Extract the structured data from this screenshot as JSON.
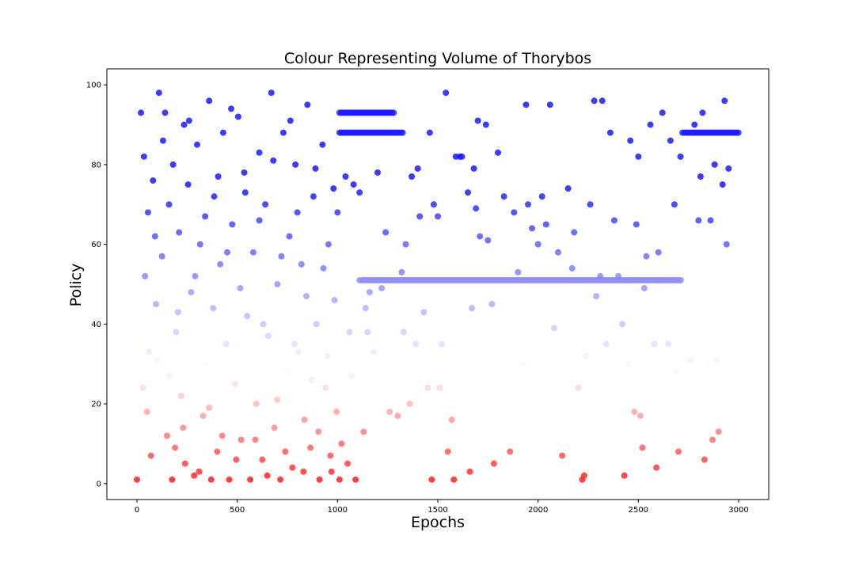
{
  "chart_data": {
    "type": "scatter",
    "title": "Colour Representing Volume of Thorybos",
    "xlabel": "Epochs",
    "ylabel": "Policy",
    "xlim": [
      -150,
      3150
    ],
    "ylim": [
      -4,
      104
    ],
    "xticks": [
      "0",
      "500",
      "1000",
      "1500",
      "2000",
      "2500",
      "3000"
    ],
    "xtick_values": [
      0,
      500,
      1000,
      1500,
      2000,
      2500,
      3000
    ],
    "yticks": [
      "0",
      "20",
      "40",
      "60",
      "80",
      "100"
    ],
    "ytick_values": [
      0,
      20,
      40,
      60,
      80,
      100
    ],
    "grid": false,
    "colormap": "bwr_r",
    "color_low": "#ff1a1a",
    "color_mid": "#ffffff",
    "color_high": "#1a1aff",
    "bands": [
      {
        "x_start": 1010,
        "x_end": 1280,
        "y": 93
      },
      {
        "x_start": 1010,
        "x_end": 1330,
        "y": 88
      },
      {
        "x_start": 1110,
        "x_end": 2720,
        "y": 51
      },
      {
        "x_start": 2720,
        "x_end": 3000,
        "y": 88
      }
    ],
    "points": [
      [
        0,
        1
      ],
      [
        20,
        93
      ],
      [
        35,
        82
      ],
      [
        40,
        52
      ],
      [
        55,
        68
      ],
      [
        60,
        33
      ],
      [
        80,
        76
      ],
      [
        95,
        45
      ],
      [
        110,
        98
      ],
      [
        125,
        57
      ],
      [
        140,
        93
      ],
      [
        150,
        12
      ],
      [
        160,
        70
      ],
      [
        175,
        1
      ],
      [
        180,
        80
      ],
      [
        195,
        38
      ],
      [
        210,
        63
      ],
      [
        220,
        22
      ],
      [
        235,
        90
      ],
      [
        240,
        5
      ],
      [
        255,
        75
      ],
      [
        270,
        48
      ],
      [
        285,
        2
      ],
      [
        300,
        85
      ],
      [
        315,
        60
      ],
      [
        330,
        17
      ],
      [
        345,
        30
      ],
      [
        360,
        96
      ],
      [
        370,
        1
      ],
      [
        385,
        72
      ],
      [
        400,
        8
      ],
      [
        415,
        55
      ],
      [
        430,
        88
      ],
      [
        445,
        35
      ],
      [
        460,
        1
      ],
      [
        475,
        65
      ],
      [
        490,
        25
      ],
      [
        505,
        92
      ],
      [
        520,
        11
      ],
      [
        535,
        78
      ],
      [
        550,
        42
      ],
      [
        565,
        1
      ],
      [
        580,
        58
      ],
      [
        595,
        20
      ],
      [
        610,
        83
      ],
      [
        625,
        6
      ],
      [
        640,
        70
      ],
      [
        655,
        37
      ],
      [
        670,
        98
      ],
      [
        685,
        14
      ],
      [
        700,
        50
      ],
      [
        715,
        1
      ],
      [
        730,
        88
      ],
      [
        745,
        28
      ],
      [
        760,
        62
      ],
      [
        775,
        4
      ],
      [
        790,
        80
      ],
      [
        805,
        33
      ],
      [
        820,
        55
      ],
      [
        835,
        16
      ],
      [
        850,
        95
      ],
      [
        865,
        9
      ],
      [
        880,
        72
      ],
      [
        895,
        40
      ],
      [
        910,
        1
      ],
      [
        925,
        85
      ],
      [
        940,
        24
      ],
      [
        955,
        60
      ],
      [
        970,
        3
      ],
      [
        985,
        46
      ],
      [
        30,
        24
      ],
      [
        50,
        18
      ],
      [
        70,
        7
      ],
      [
        90,
        62
      ],
      [
        100,
        31
      ],
      [
        130,
        86
      ],
      [
        160,
        27
      ],
      [
        190,
        9
      ],
      [
        205,
        43
      ],
      [
        230,
        14
      ],
      [
        260,
        91
      ],
      [
        290,
        52
      ],
      [
        310,
        3
      ],
      [
        340,
        67
      ],
      [
        360,
        19
      ],
      [
        380,
        44
      ],
      [
        405,
        77
      ],
      [
        425,
        12
      ],
      [
        450,
        58
      ],
      [
        470,
        94
      ],
      [
        495,
        6
      ],
      [
        515,
        49
      ],
      [
        540,
        73
      ],
      [
        560,
        29
      ],
      [
        590,
        11
      ],
      [
        610,
        66
      ],
      [
        630,
        40
      ],
      [
        650,
        2
      ],
      [
        680,
        81
      ],
      [
        700,
        21
      ],
      [
        720,
        57
      ],
      [
        740,
        8
      ],
      [
        765,
        91
      ],
      [
        785,
        35
      ],
      [
        800,
        68
      ],
      [
        830,
        3
      ],
      [
        845,
        47
      ],
      [
        870,
        26
      ],
      [
        890,
        79
      ],
      [
        905,
        13
      ],
      [
        930,
        54
      ],
      [
        950,
        32
      ],
      [
        965,
        7
      ],
      [
        980,
        74
      ],
      [
        995,
        18
      ],
      [
        1000,
        68
      ],
      [
        1010,
        1
      ],
      [
        1020,
        10
      ],
      [
        1040,
        77
      ],
      [
        1050,
        5
      ],
      [
        1060,
        38
      ],
      [
        1070,
        27
      ],
      [
        1080,
        75
      ],
      [
        1090,
        1
      ],
      [
        1110,
        73
      ],
      [
        1130,
        13
      ],
      [
        1140,
        44
      ],
      [
        1150,
        38
      ],
      [
        1160,
        48
      ],
      [
        1180,
        33
      ],
      [
        1200,
        78
      ],
      [
        1220,
        49
      ],
      [
        1240,
        63
      ],
      [
        1260,
        18
      ],
      [
        1300,
        17
      ],
      [
        1320,
        53
      ],
      [
        1330,
        38
      ],
      [
        1340,
        60
      ],
      [
        1360,
        20
      ],
      [
        1370,
        77
      ],
      [
        1390,
        35
      ],
      [
        1400,
        79
      ],
      [
        1410,
        67
      ],
      [
        1430,
        43
      ],
      [
        1450,
        24
      ],
      [
        1460,
        88
      ],
      [
        1470,
        1
      ],
      [
        1480,
        70
      ],
      [
        1500,
        67
      ],
      [
        1520,
        35
      ],
      [
        1540,
        98
      ],
      [
        1550,
        8
      ],
      [
        1570,
        16
      ],
      [
        1590,
        82
      ],
      [
        1620,
        82
      ],
      [
        1650,
        73
      ],
      [
        1660,
        3
      ],
      [
        1670,
        44
      ],
      [
        1680,
        79
      ],
      [
        1690,
        69
      ],
      [
        1700,
        91
      ],
      [
        1710,
        62
      ],
      [
        1740,
        90
      ],
      [
        1750,
        61
      ],
      [
        1770,
        45
      ],
      [
        1780,
        5
      ],
      [
        1800,
        83
      ],
      [
        1830,
        72
      ],
      [
        1860,
        8
      ],
      [
        1880,
        68
      ],
      [
        1900,
        53
      ],
      [
        1920,
        30
      ],
      [
        1940,
        95
      ],
      [
        1950,
        70
      ],
      [
        1970,
        64
      ],
      [
        2000,
        60
      ],
      [
        2020,
        72
      ],
      [
        2040,
        65
      ],
      [
        2060,
        95
      ],
      [
        2080,
        39
      ],
      [
        2100,
        58
      ],
      [
        2120,
        7
      ],
      [
        2150,
        74
      ],
      [
        2170,
        54
      ],
      [
        2180,
        63
      ],
      [
        2200,
        24
      ],
      [
        2220,
        1
      ],
      [
        2230,
        2
      ],
      [
        2240,
        32
      ],
      [
        2260,
        70
      ],
      [
        2280,
        96
      ],
      [
        2290,
        47
      ],
      [
        2310,
        52
      ],
      [
        2320,
        96
      ],
      [
        2340,
        35
      ],
      [
        2360,
        88
      ],
      [
        2380,
        66
      ],
      [
        2400,
        52
      ],
      [
        2420,
        40
      ],
      [
        2430,
        2
      ],
      [
        2450,
        30
      ],
      [
        2460,
        86
      ],
      [
        2480,
        18
      ],
      [
        2490,
        65
      ],
      [
        2500,
        82
      ],
      [
        2510,
        17
      ],
      [
        2520,
        9
      ],
      [
        2530,
        49
      ],
      [
        2540,
        57
      ],
      [
        2560,
        90
      ],
      [
        2580,
        35
      ],
      [
        2590,
        4
      ],
      [
        2600,
        58
      ],
      [
        2620,
        93
      ],
      [
        2650,
        35
      ],
      [
        2660,
        86
      ],
      [
        2680,
        70
      ],
      [
        2690,
        28
      ],
      [
        2700,
        8
      ],
      [
        2710,
        82
      ],
      [
        2740,
        29
      ],
      [
        2760,
        31
      ],
      [
        2780,
        90
      ],
      [
        2800,
        66
      ],
      [
        2810,
        77
      ],
      [
        2820,
        93
      ],
      [
        2830,
        6
      ],
      [
        2850,
        30
      ],
      [
        2860,
        66
      ],
      [
        2870,
        11
      ],
      [
        2880,
        80
      ],
      [
        2890,
        31
      ],
      [
        2900,
        13
      ],
      [
        2920,
        75
      ],
      [
        2930,
        96
      ],
      [
        2940,
        60
      ],
      [
        2950,
        79
      ],
      [
        1610,
        82
      ],
      [
        1510,
        24
      ],
      [
        1580,
        1
      ]
    ]
  }
}
